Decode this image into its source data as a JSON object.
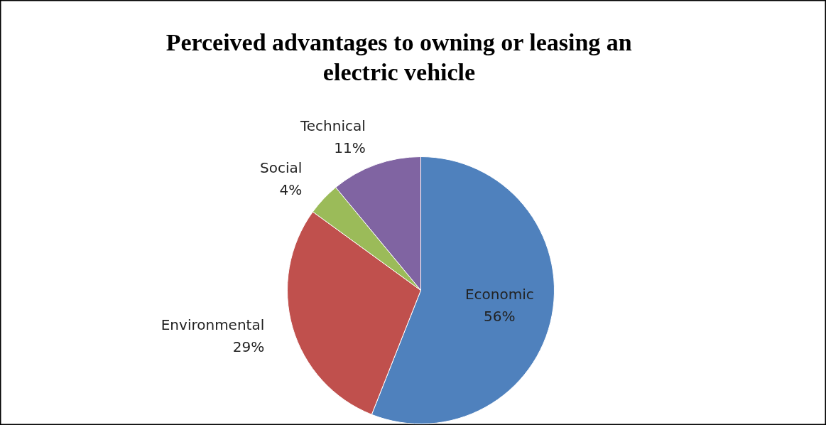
{
  "chart_data": {
    "type": "pie",
    "title": "Perceived advantages to owning or leasing an electric vehicle",
    "categories": [
      "Economic",
      "Environmental",
      "Social",
      "Technical"
    ],
    "values": [
      56,
      29,
      4,
      11
    ],
    "value_labels": [
      "56%",
      "29%",
      "4%",
      "11%"
    ],
    "colors": [
      "#4f81bd",
      "#c0504d",
      "#9bbb59",
      "#8064a2"
    ]
  }
}
